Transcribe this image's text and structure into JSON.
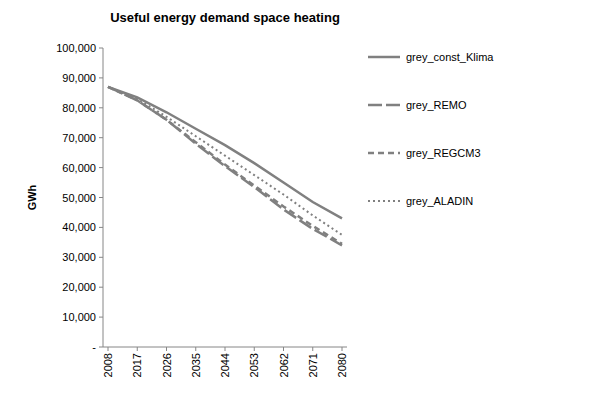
{
  "chart_data": {
    "type": "line",
    "title": "Useful energy demand space heating",
    "y_label": "GWh",
    "categories": [
      "2008",
      "2017",
      "2026",
      "2035",
      "2044",
      "2053",
      "2062",
      "2071",
      "2080"
    ],
    "series": [
      {
        "name": "grey_const_Klima",
        "color": "#808080",
        "line_style": "solid",
        "values": [
          87000,
          83500,
          78500,
          73000,
          67500,
          61500,
          55000,
          48500,
          43000
        ]
      },
      {
        "name": "grey_REMO",
        "color": "#808080",
        "line_style": "long-dash",
        "values": [
          87000,
          82500,
          76000,
          68000,
          60500,
          53500,
          46000,
          39500,
          34000
        ]
      },
      {
        "name": "grey_REGCM3",
        "color": "#808080",
        "line_style": "dash",
        "values": [
          87000,
          82500,
          76000,
          68500,
          61000,
          54000,
          47000,
          40500,
          34500
        ]
      },
      {
        "name": "grey_ALADIN",
        "color": "#808080",
        "line_style": "dot",
        "values": [
          87000,
          83000,
          77000,
          70500,
          64000,
          57500,
          51000,
          44000,
          37500
        ]
      }
    ],
    "ylim": [
      0,
      100000
    ],
    "yticks": [
      {
        "value": 0,
        "label": "-"
      },
      {
        "value": 10000,
        "label": "10,000"
      },
      {
        "value": 20000,
        "label": "20,000"
      },
      {
        "value": 30000,
        "label": "30,000"
      },
      {
        "value": 40000,
        "label": "40,000"
      },
      {
        "value": 50000,
        "label": "50,000"
      },
      {
        "value": 60000,
        "label": "60,000"
      },
      {
        "value": 70000,
        "label": "70,000"
      },
      {
        "value": 80000,
        "label": "80,000"
      },
      {
        "value": 90000,
        "label": "90,000"
      },
      {
        "value": 100000,
        "label": "100,000"
      }
    ],
    "grid": false,
    "legend": "right"
  }
}
